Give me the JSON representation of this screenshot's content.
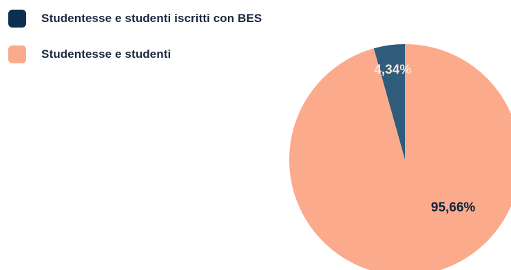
{
  "legend": [
    {
      "label": "Studentesse e studenti iscritti con BES",
      "color": "#0d3050"
    },
    {
      "label": "Studentesse e studenti",
      "color": "#fbab8c"
    }
  ],
  "chart_data": {
    "type": "pie",
    "categories": [
      "Studentesse e studenti iscritti con BES",
      "Studentesse e studenti"
    ],
    "values": [
      4.34,
      95.66
    ],
    "value_labels": [
      "4,34%",
      "95,66%"
    ],
    "colors": [
      "#2e5c7a",
      "#fbab8c"
    ],
    "label_colors": [
      "#fbe3d6",
      "#0d2340"
    ],
    "title": "",
    "legend_position": "top-left"
  }
}
